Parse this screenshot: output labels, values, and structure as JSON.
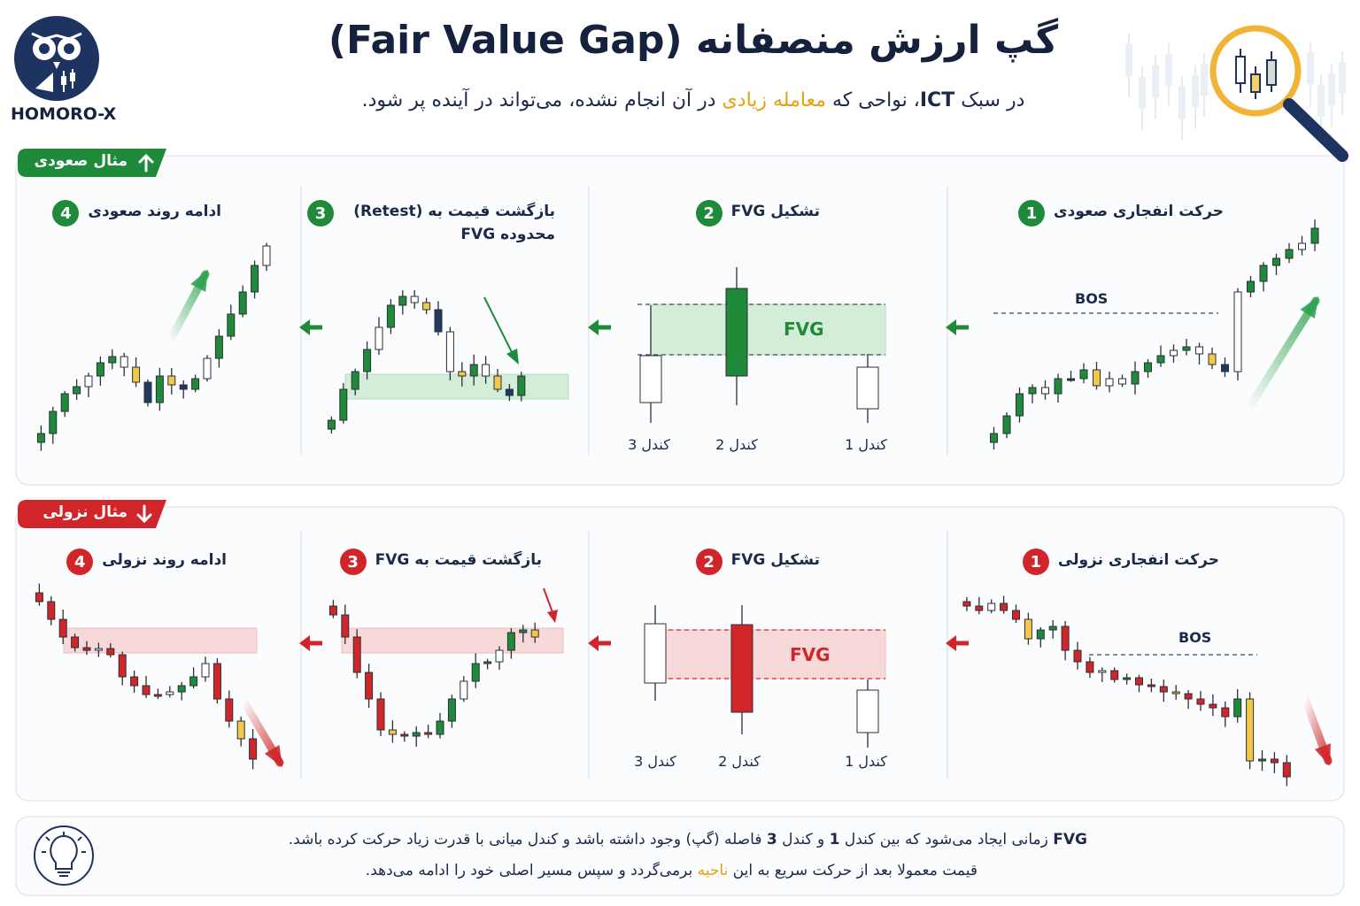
{
  "header": {
    "brand": "HOMORO-X",
    "title": "گپ ارزش منصفانه (Fair Value Gap)",
    "subtitle": [
      "در سبک ",
      "ICT",
      "، نواحی که ",
      "معامله زیادی",
      " در آن انجام نشده، می‌تواند در آینده پر شود."
    ]
  },
  "sections": [
    {
      "label": "مثال صعودی",
      "steps": [
        {
          "number": 1,
          "title": "حرکت انفجاری صعودی"
        },
        {
          "number": 2,
          "title": "تشکیل FVG"
        },
        {
          "number": 3,
          "title": "بازگشت قیمت به (Retest) محدوده FVG"
        },
        {
          "number": 4,
          "title": "ادامه روند صعودی"
        }
      ],
      "bos": "BOS",
      "fvg": "FVG",
      "candles": [
        "کندل 1",
        "کندل 2",
        "کندل 3"
      ]
    },
    {
      "label": "مثال نزولی",
      "steps": [
        {
          "number": 1,
          "title": "حرکت انفجاری نزولی"
        },
        {
          "number": 2,
          "title": "تشکیل FVG"
        },
        {
          "number": 3,
          "title": "بازگشت قیمت به FVG"
        },
        {
          "number": 4,
          "title": "ادامه روند نزولی"
        }
      ],
      "bos": "BOS",
      "fvg": "FVG",
      "candles": [
        "کندل 1",
        "کندل 2",
        "کندل 3"
      ]
    }
  ],
  "footer": {
    "lines": [
      [
        "FVG",
        " زمانی ایجاد می‌شود که بین کندل ",
        "1",
        " و کندل ",
        "3",
        " فاصله (گپ) وجود داشته باشد و کندل میانی با قدرت زیاد حرکت کرده باشد."
      ],
      [
        "قیمت معمولا بعد از حرکت سریع به این ",
        "ناحیه",
        " برمی‌گردد و سپس مسیر اصلی خود را ادامه می‌دهد."
      ]
    ]
  }
}
